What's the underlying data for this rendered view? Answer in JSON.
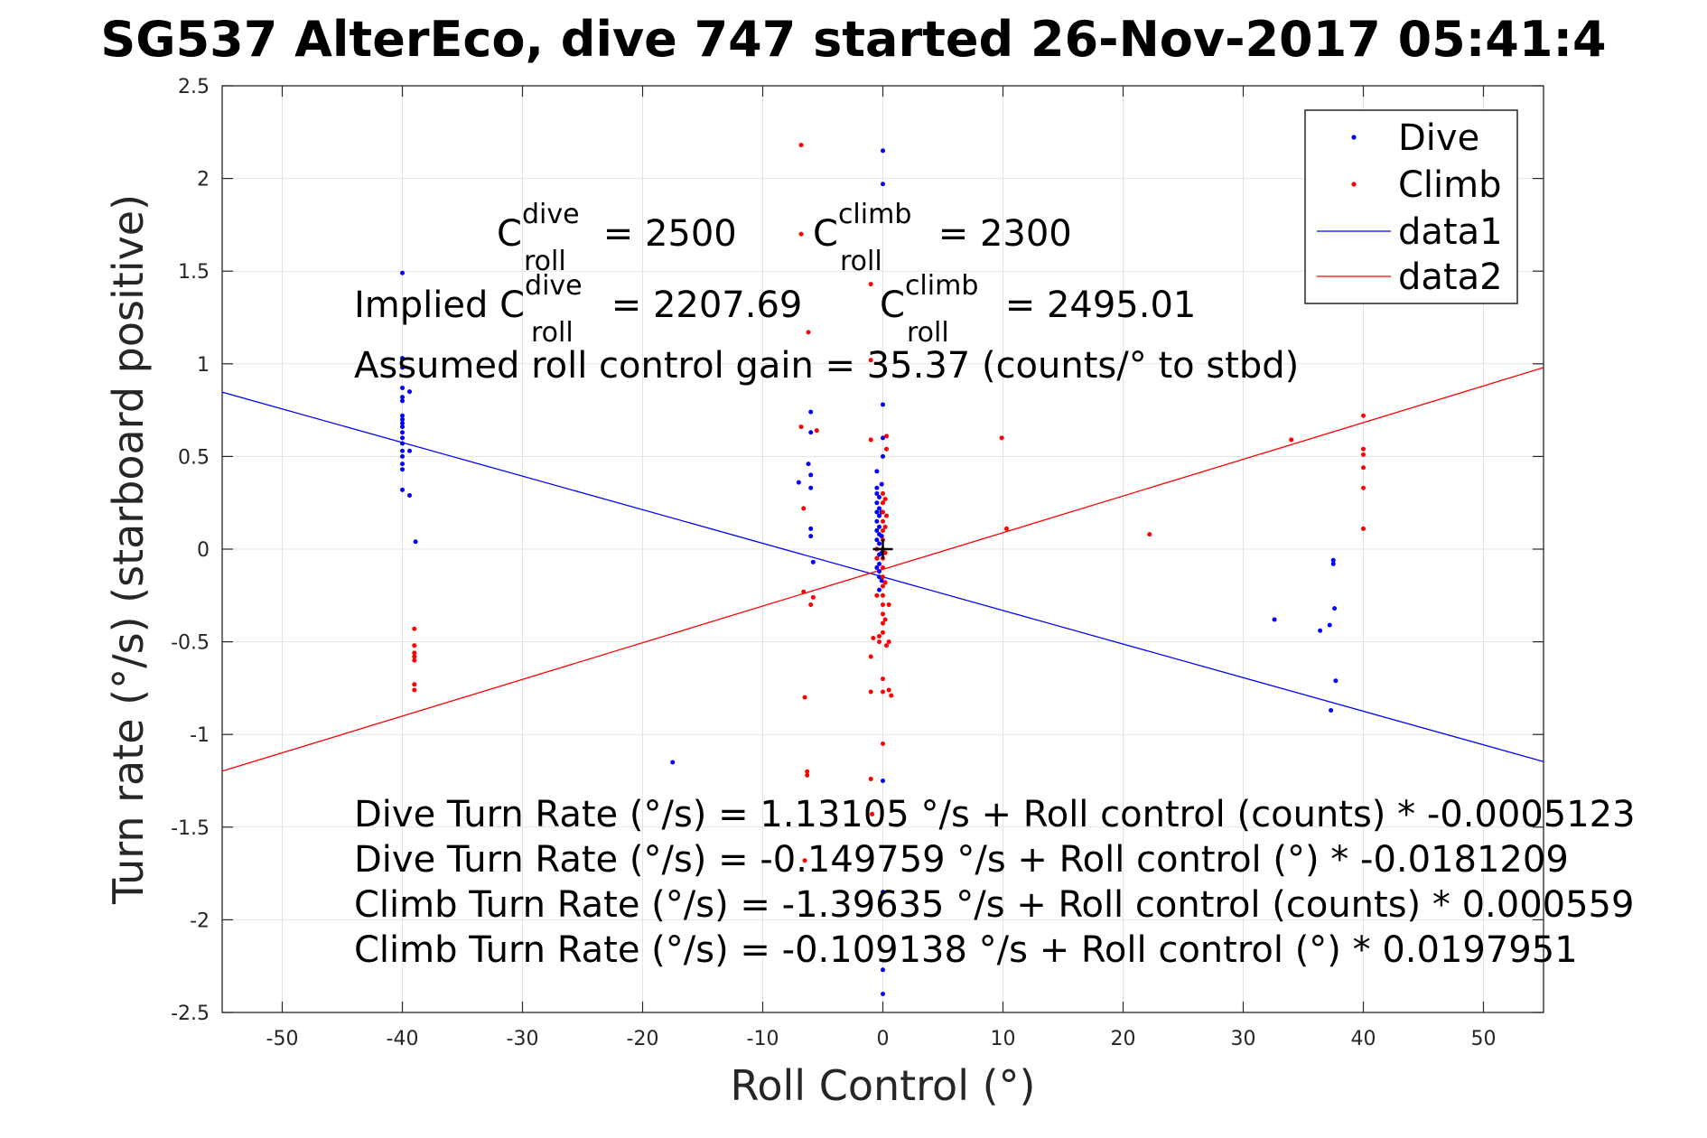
{
  "chart_data": {
    "type": "scatter",
    "title": "SG537 AlterEco, dive 747 started 26-Nov-2017 05:41:4",
    "xlabel": "Roll Control (°)",
    "ylabel": "Turn rate (°/s) (starboard positive)",
    "xlim": [
      -55,
      55
    ],
    "ylim": [
      -2.5,
      2.5
    ],
    "xticks": [
      -50,
      -40,
      -30,
      -20,
      -10,
      0,
      10,
      20,
      30,
      40,
      50
    ],
    "yticks": [
      -2.5,
      -2,
      -1.5,
      -1,
      -0.5,
      0,
      0.5,
      1,
      1.5,
      2,
      2.5
    ],
    "grid": true,
    "legend_position": "top-right",
    "series": [
      {
        "name": "Dive",
        "kind": "points",
        "color": "#0000ff",
        "points": [
          [
            -40,
            1.49
          ],
          [
            -40,
            1.03
          ],
          [
            -40,
            0.98
          ],
          [
            -40,
            0.87
          ],
          [
            -40,
            0.82
          ],
          [
            -40,
            0.8
          ],
          [
            -40,
            0.72
          ],
          [
            -40,
            0.7
          ],
          [
            -40,
            0.68
          ],
          [
            -40,
            0.66
          ],
          [
            -40,
            0.63
          ],
          [
            -40,
            0.6
          ],
          [
            -40,
            0.57
          ],
          [
            -40,
            0.53
          ],
          [
            -40,
            0.5
          ],
          [
            -40,
            0.46
          ],
          [
            -40,
            0.43
          ],
          [
            -40,
            0.32
          ],
          [
            -39.4,
            0.85
          ],
          [
            -39.4,
            0.53
          ],
          [
            -39.4,
            0.29
          ],
          [
            -38.9,
            0.04
          ],
          [
            -17.5,
            -1.15
          ],
          [
            -7,
            0.36
          ],
          [
            -6.2,
            0.46
          ],
          [
            -6,
            0.74
          ],
          [
            -6,
            0.63
          ],
          [
            -6,
            0.4
          ],
          [
            -6,
            0.33
          ],
          [
            -6,
            0.11
          ],
          [
            -6,
            0.07
          ],
          [
            -5.8,
            -0.07
          ],
          [
            -0.5,
            0.42
          ],
          [
            -0.5,
            0.33
          ],
          [
            -0.5,
            0.3
          ],
          [
            -0.5,
            0.25
          ],
          [
            -0.5,
            0.2
          ],
          [
            -0.5,
            0.15
          ],
          [
            -0.5,
            0.1
          ],
          [
            -0.5,
            0.05
          ],
          [
            -0.5,
            0.0
          ],
          [
            -0.5,
            -0.05
          ],
          [
            -0.5,
            -0.1
          ],
          [
            -0.3,
            0.28
          ],
          [
            -0.3,
            0.22
          ],
          [
            -0.3,
            0.18
          ],
          [
            -0.3,
            0.12
          ],
          [
            -0.3,
            0.08
          ],
          [
            -0.3,
            0.03
          ],
          [
            -0.3,
            -0.03
          ],
          [
            -0.3,
            -0.08
          ],
          [
            -0.3,
            -0.12
          ],
          [
            -0.3,
            -0.15
          ],
          [
            -0.3,
            -0.22
          ],
          [
            -0.1,
            0.35
          ],
          [
            -0.1,
            0.2
          ],
          [
            -0.1,
            0.07
          ],
          [
            -0.1,
            -0.02
          ],
          [
            -0.1,
            -0.17
          ],
          [
            0,
            2.15
          ],
          [
            0,
            1.97
          ],
          [
            0,
            0.78
          ],
          [
            0,
            0.6
          ],
          [
            0,
            0.5
          ],
          [
            0,
            -1.25
          ],
          [
            0,
            -1.85
          ],
          [
            0,
            -2.27
          ],
          [
            0,
            -2.4
          ],
          [
            32.6,
            -0.38
          ],
          [
            36.4,
            -0.44
          ],
          [
            37.2,
            -0.41
          ],
          [
            37.3,
            -0.87
          ],
          [
            37.5,
            -0.06
          ],
          [
            37.5,
            -0.08
          ],
          [
            37.6,
            -0.32
          ],
          [
            37.7,
            -0.71
          ]
        ]
      },
      {
        "name": "Climb",
        "kind": "points",
        "color": "#ff0000",
        "points": [
          [
            -39,
            -0.43
          ],
          [
            -39,
            -0.52
          ],
          [
            -39,
            -0.56
          ],
          [
            -39,
            -0.58
          ],
          [
            -39,
            -0.6
          ],
          [
            -39,
            -0.73
          ],
          [
            -39,
            -0.76
          ],
          [
            -6.8,
            2.18
          ],
          [
            -6.8,
            1.7
          ],
          [
            -6.8,
            0.66
          ],
          [
            -6.6,
            0.22
          ],
          [
            -6.6,
            -0.23
          ],
          [
            -6.5,
            -0.8
          ],
          [
            -6.5,
            -1.68
          ],
          [
            -6.3,
            -1.2
          ],
          [
            -6.3,
            -1.22
          ],
          [
            -6.2,
            1.17
          ],
          [
            -6,
            -0.3
          ],
          [
            -5.8,
            -0.26
          ],
          [
            -5.5,
            0.64
          ],
          [
            -1.0,
            1.43
          ],
          [
            -1.0,
            1.02
          ],
          [
            -1.0,
            0.59
          ],
          [
            -1.0,
            -0.58
          ],
          [
            -1.0,
            -0.77
          ],
          [
            -1.0,
            -1.24
          ],
          [
            -0.9,
            -1.43
          ],
          [
            -0.8,
            -0.48
          ],
          [
            -0.5,
            0.0
          ],
          [
            -0.5,
            -0.05
          ],
          [
            -0.5,
            -0.25
          ],
          [
            -0.3,
            -0.47
          ],
          [
            -0.3,
            -0.5
          ],
          [
            0,
            0.3
          ],
          [
            0,
            0.25
          ],
          [
            0,
            0.2
          ],
          [
            0,
            0.15
          ],
          [
            0,
            0.1
          ],
          [
            0,
            0.05
          ],
          [
            0,
            0.0
          ],
          [
            0,
            -0.05
          ],
          [
            0,
            -0.1
          ],
          [
            0,
            -0.15
          ],
          [
            0,
            -0.2
          ],
          [
            0,
            -0.25
          ],
          [
            0,
            -0.3
          ],
          [
            0,
            -0.35
          ],
          [
            0,
            -0.4
          ],
          [
            0,
            -0.45
          ],
          [
            0,
            -0.7
          ],
          [
            0,
            -0.77
          ],
          [
            0,
            -1.05
          ],
          [
            0.2,
            0.27
          ],
          [
            0.2,
            0.12
          ],
          [
            0.2,
            -0.02
          ],
          [
            0.2,
            -0.18
          ],
          [
            0.2,
            -0.38
          ],
          [
            0.3,
            0.61
          ],
          [
            0.3,
            0.54
          ],
          [
            0.3,
            0.18
          ],
          [
            0.3,
            -0.52
          ],
          [
            0.5,
            -0.3
          ],
          [
            0.5,
            -0.5
          ],
          [
            0.5,
            -0.76
          ],
          [
            0.7,
            -0.79
          ],
          [
            9.9,
            0.6
          ],
          [
            10.3,
            0.11
          ],
          [
            22.2,
            0.08
          ],
          [
            34,
            0.59
          ],
          [
            40,
            0.72
          ],
          [
            40,
            0.54
          ],
          [
            40,
            0.51
          ],
          [
            40,
            0.44
          ],
          [
            40,
            0.33
          ],
          [
            40,
            0.11
          ]
        ]
      },
      {
        "name": "data1",
        "kind": "line",
        "color": "#0000ff",
        "intercept": -0.149759,
        "slope": -0.0181209
      },
      {
        "name": "data2",
        "kind": "line",
        "color": "#ff0000",
        "intercept": -0.109138,
        "slope": 0.0197951
      }
    ],
    "zero_marker": [
      0,
      0
    ]
  },
  "annotations": {
    "c_dive": {
      "base": "C",
      "sup": "dive",
      "sub": "roll",
      "rest": " = 2500"
    },
    "c_climb": {
      "base": "C",
      "sup": "climb",
      "sub": "roll",
      "rest": " = 2300"
    },
    "implied_prefix": "Implied ",
    "implied_dive": {
      "base": "C",
      "sup": "dive",
      "sub": "roll",
      "rest": " = 2207.69"
    },
    "implied_climb": {
      "base": "C",
      "sup": "climb",
      "sub": "roll",
      "rest": " = 2495.01"
    },
    "gain": "Assumed roll control gain = 35.37 (counts/° to stbd)",
    "fit_lines": [
      "Dive Turn Rate (°/s) = 1.13105 °/s + Roll control (counts) * -0.0005123",
      "Dive Turn Rate (°/s) = -0.149759 °/s + Roll control (°) * -0.0181209",
      "Climb Turn Rate (°/s) = -1.39635 °/s + Roll control (counts) * 0.000559",
      "Climb Turn Rate (°/s) = -0.109138 °/s + Roll control (°) * 0.0197951"
    ]
  }
}
